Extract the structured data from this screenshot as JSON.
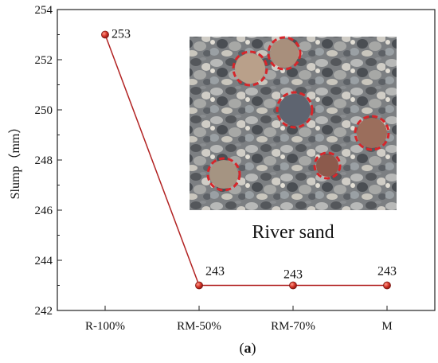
{
  "chart_data": {
    "type": "line",
    "categories": [
      "R-100%",
      "RM-50%",
      "RM-70%",
      "M"
    ],
    "series": [
      {
        "values": [
          253,
          243,
          243,
          243
        ]
      }
    ],
    "data_labels": [
      "253",
      "243",
      "243",
      "243"
    ],
    "ylabel": "Slump（mm）",
    "ylim": [
      242,
      254
    ],
    "yticks": [
      242,
      244,
      246,
      248,
      250,
      252,
      254
    ],
    "grid": false,
    "panel_label_prefix": "(",
    "panel_label_letter": "a",
    "panel_label_suffix": ")",
    "inset": {
      "caption": "River sand"
    },
    "colors": {
      "line": "#b22222",
      "marker": "#c0302a",
      "frame": "#222222"
    }
  }
}
